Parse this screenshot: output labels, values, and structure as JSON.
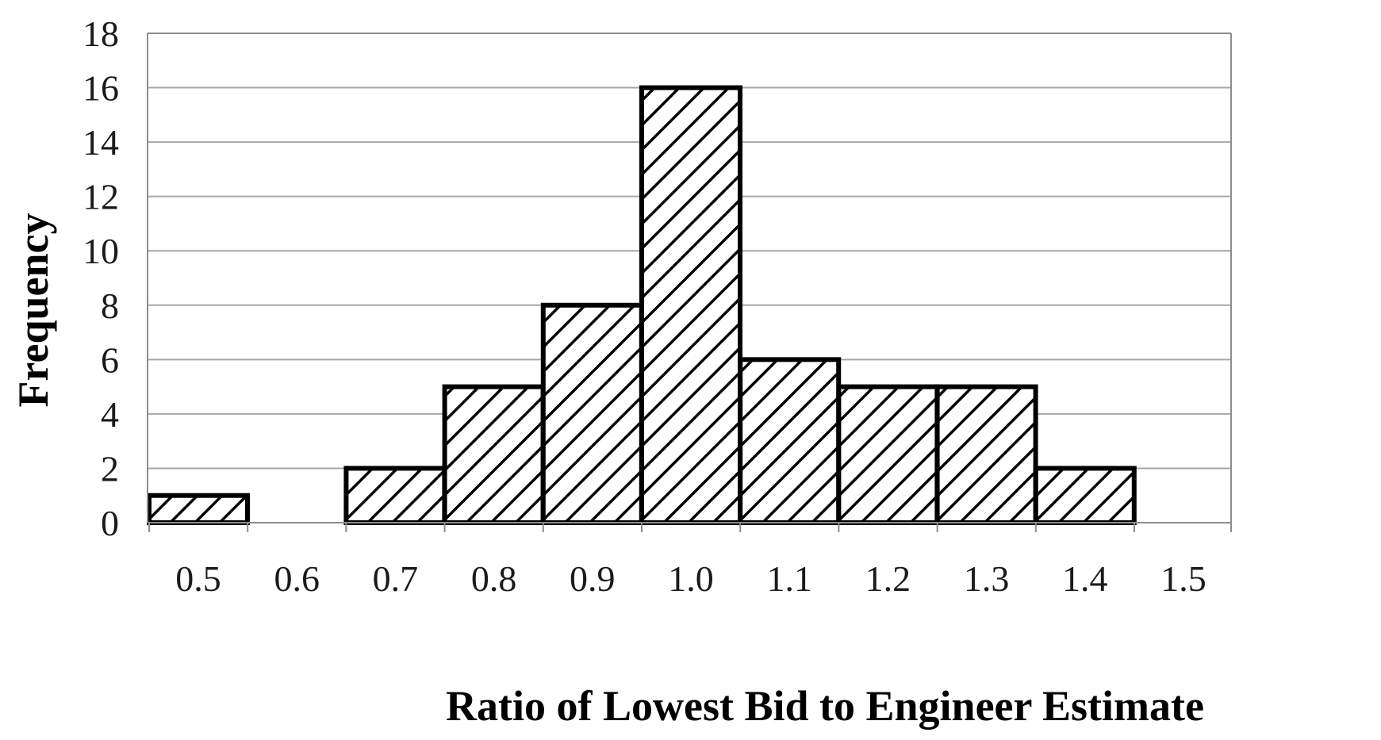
{
  "chart_data": {
    "type": "bar",
    "title": "",
    "xlabel": "Ratio of Lowest Bid to Engineer Estimate",
    "ylabel": "Frequency",
    "categories": [
      "0.5",
      "0.6",
      "0.7",
      "0.8",
      "0.9",
      "1.0",
      "1.1",
      "1.2",
      "1.3",
      "1.4",
      "1.5"
    ],
    "values": [
      1,
      0,
      2,
      5,
      8,
      16,
      6,
      5,
      5,
      2,
      0
    ],
    "ylim": [
      0,
      18
    ],
    "yticks": [
      "0",
      "2",
      "4",
      "6",
      "8",
      "10",
      "12",
      "14",
      "16",
      "18"
    ],
    "grid": true,
    "legend": "none",
    "bar_fill": "diagonal-hatch",
    "colors": {
      "bar_stroke": "#000000",
      "hatch": "#000000",
      "bar_background": "#ffffff",
      "grid": "#a6a6a6",
      "plot_border": "#8c8c8c"
    }
  }
}
